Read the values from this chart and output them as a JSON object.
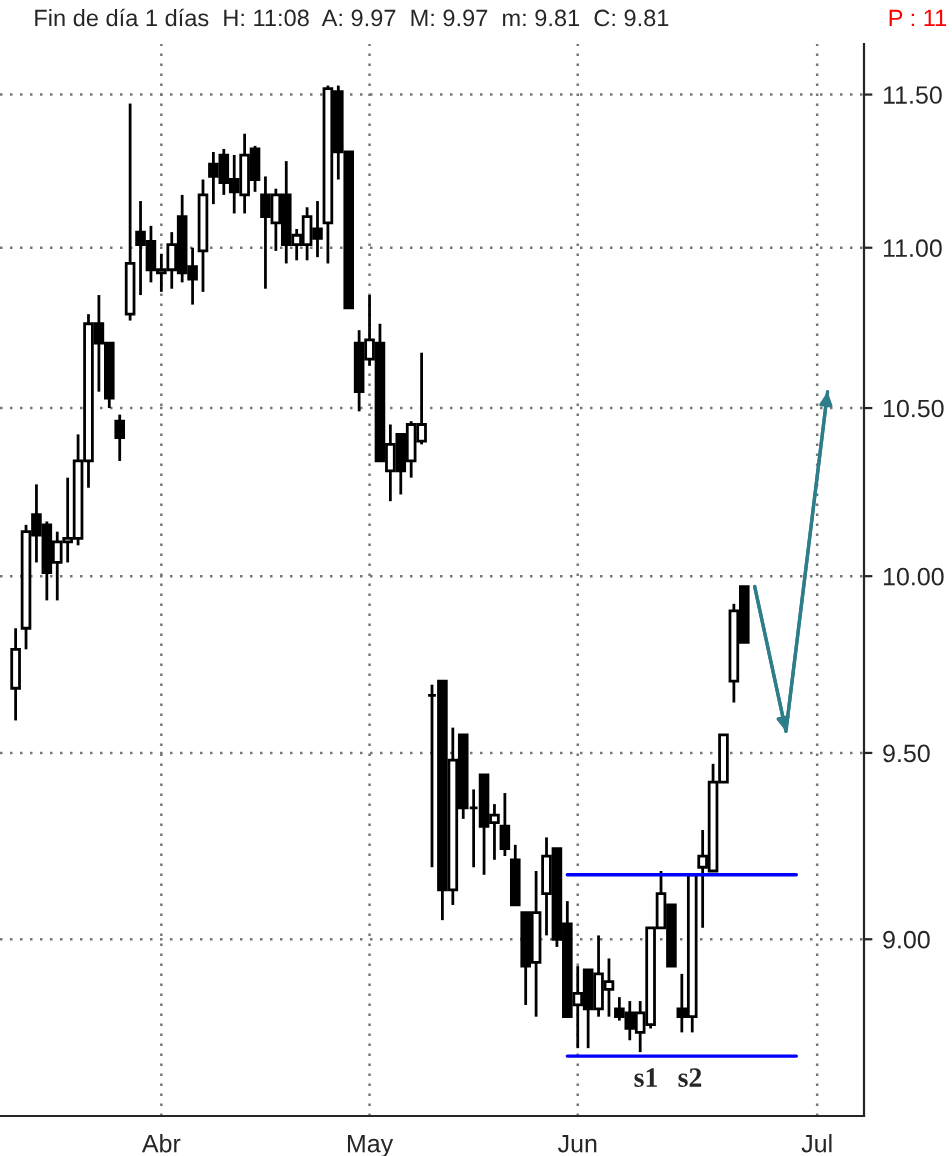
{
  "chart_data": {
    "type": "candlestick",
    "title": "Fin de día 1 días  H: 11:08  A: 9.97  M: 9.97  m: 9.81  C: 9.81",
    "annotations": [
      "P : 11",
      "s1",
      "s2"
    ],
    "categories": [
      null,
      null,
      null,
      null,
      null,
      null,
      null,
      null,
      null,
      null,
      null,
      null,
      null,
      null,
      "Abr",
      null,
      null,
      null,
      null,
      null,
      null,
      null,
      null,
      null,
      null,
      null,
      null,
      null,
      null,
      null,
      null,
      null,
      null,
      null,
      "May",
      null,
      null,
      null,
      null,
      null,
      null,
      null,
      null,
      null,
      null,
      null,
      null,
      null,
      null,
      null,
      null,
      null,
      null,
      null,
      "Jun",
      null,
      null,
      null,
      null,
      null,
      null,
      null,
      null,
      null,
      null,
      null,
      null,
      null,
      null,
      null,
      null,
      null,
      null,
      null,
      null,
      null,
      null,
      "Jul",
      null,
      null,
      null,
      null
    ],
    "ohlc": [
      [
        9.68,
        9.85,
        9.59,
        9.79
      ],
      [
        9.85,
        10.15,
        9.79,
        10.13
      ],
      [
        10.18,
        10.27,
        10.04,
        10.12
      ],
      [
        10.15,
        10.16,
        9.93,
        10.01
      ],
      [
        10.04,
        10.13,
        9.93,
        10.1
      ],
      [
        10.1,
        10.29,
        10.04,
        10.11
      ],
      [
        10.11,
        10.42,
        10.09,
        10.34
      ],
      [
        10.34,
        10.79,
        10.26,
        10.76
      ],
      [
        10.76,
        10.85,
        10.55,
        10.7
      ],
      [
        10.7,
        10.7,
        10.5,
        10.53
      ],
      [
        10.46,
        10.48,
        10.34,
        10.41
      ],
      [
        10.79,
        11.47,
        10.77,
        10.95
      ],
      [
        11.05,
        11.15,
        10.85,
        11.01
      ],
      [
        11.02,
        11.07,
        10.89,
        10.93
      ],
      [
        10.92,
        10.98,
        10.86,
        10.93
      ],
      [
        10.93,
        11.05,
        10.87,
        11.01
      ],
      [
        11.1,
        11.17,
        10.89,
        10.92
      ],
      [
        10.94,
        11.0,
        10.82,
        10.9
      ],
      [
        10.99,
        11.22,
        10.86,
        11.17
      ],
      [
        11.27,
        11.31,
        11.14,
        11.23
      ],
      [
        11.3,
        11.32,
        11.17,
        11.21
      ],
      [
        11.22,
        11.3,
        11.11,
        11.18
      ],
      [
        11.17,
        11.37,
        11.11,
        11.3
      ],
      [
        11.32,
        11.33,
        11.18,
        11.22
      ],
      [
        11.17,
        11.23,
        10.87,
        11.1
      ],
      [
        11.08,
        11.19,
        10.99,
        11.17
      ],
      [
        11.17,
        11.28,
        10.95,
        11.01
      ],
      [
        11.01,
        11.06,
        10.96,
        11.04
      ],
      [
        11.01,
        11.13,
        10.96,
        11.1
      ],
      [
        11.06,
        11.15,
        10.97,
        11.03
      ],
      [
        11.08,
        11.53,
        10.95,
        11.52
      ],
      [
        11.51,
        11.53,
        11.22,
        11.31
      ],
      [
        11.31,
        11.31,
        10.81,
        10.81
      ],
      [
        10.7,
        10.74,
        10.49,
        10.55
      ],
      [
        10.65,
        10.85,
        10.63,
        10.71
      ],
      [
        10.7,
        10.76,
        10.34,
        10.34
      ],
      [
        10.31,
        10.45,
        10.22,
        10.39
      ],
      [
        10.42,
        10.42,
        10.24,
        10.31
      ],
      [
        10.34,
        10.46,
        10.29,
        10.45
      ],
      [
        10.4,
        10.67,
        10.39,
        10.45
      ],
      [
        9.66,
        9.69,
        9.19,
        9.66
      ],
      [
        9.7,
        9.7,
        9.05,
        9.13
      ],
      [
        9.13,
        9.57,
        9.09,
        9.48
      ],
      [
        9.55,
        9.55,
        9.32,
        9.35
      ],
      [
        9.35,
        9.4,
        9.19,
        9.35
      ],
      [
        9.44,
        9.44,
        9.17,
        9.3
      ],
      [
        9.31,
        9.36,
        9.21,
        9.33
      ],
      [
        9.3,
        9.39,
        9.22,
        9.24
      ],
      [
        9.21,
        9.25,
        9.09,
        9.09
      ],
      [
        9.07,
        9.07,
        8.83,
        8.93
      ],
      [
        8.94,
        9.18,
        8.8,
        9.07
      ],
      [
        9.12,
        9.27,
        9.01,
        9.22
      ],
      [
        9.24,
        9.24,
        8.98,
        9.0
      ],
      [
        9.04,
        9.1,
        8.8,
        8.8
      ],
      [
        8.83,
        8.93,
        8.72,
        8.86
      ],
      [
        8.92,
        8.92,
        8.72,
        8.82
      ],
      [
        8.82,
        9.01,
        8.8,
        8.91
      ],
      [
        8.87,
        8.95,
        8.8,
        8.89
      ],
      [
        8.82,
        8.85,
        8.79,
        8.8
      ],
      [
        8.81,
        8.84,
        8.74,
        8.77
      ],
      [
        8.76,
        8.84,
        8.71,
        8.81
      ],
      [
        8.78,
        9.03,
        8.77,
        9.03
      ],
      [
        9.03,
        9.18,
        9.03,
        9.12
      ],
      [
        9.09,
        9.09,
        8.93,
        8.93
      ],
      [
        8.82,
        8.91,
        8.76,
        8.8
      ],
      [
        8.8,
        9.17,
        8.76,
        9.17
      ],
      [
        9.19,
        9.29,
        9.03,
        9.22
      ],
      [
        9.18,
        9.47,
        9.18,
        9.42
      ],
      [
        9.42,
        9.55,
        9.42,
        9.55
      ],
      [
        9.7,
        9.92,
        9.64,
        9.9
      ],
      [
        9.97,
        9.97,
        9.81,
        9.81
      ],
      null,
      null,
      null,
      null,
      null,
      null,
      null,
      null,
      null,
      null,
      null
    ],
    "series": [
      {
        "type": "line",
        "color": "#0000ff",
        "values": [
          null,
          null,
          null,
          null,
          null,
          null,
          null,
          null,
          null,
          null,
          null,
          null,
          null,
          null,
          null,
          null,
          null,
          null,
          null,
          null,
          null,
          null,
          null,
          null,
          null,
          null,
          null,
          null,
          null,
          null,
          null,
          null,
          null,
          null,
          null,
          null,
          null,
          null,
          null,
          null,
          null,
          null,
          null,
          null,
          null,
          null,
          null,
          null,
          null,
          null,
          null,
          null,
          null,
          9.17,
          null,
          null,
          null,
          null,
          null,
          null,
          null,
          null,
          null,
          null,
          null,
          null,
          null,
          null,
          null,
          null,
          null,
          null,
          null,
          null,
          null,
          9.17,
          null,
          null,
          null,
          null,
          null,
          null
        ]
      },
      {
        "type": "line",
        "color": "#0000ff",
        "values": [
          null,
          null,
          null,
          null,
          null,
          null,
          null,
          null,
          null,
          null,
          null,
          null,
          null,
          null,
          null,
          null,
          null,
          null,
          null,
          null,
          null,
          null,
          null,
          null,
          null,
          null,
          null,
          null,
          null,
          null,
          null,
          null,
          null,
          null,
          null,
          null,
          null,
          null,
          null,
          null,
          null,
          null,
          null,
          null,
          null,
          null,
          null,
          null,
          null,
          null,
          null,
          null,
          null,
          8.7,
          null,
          null,
          null,
          null,
          null,
          null,
          null,
          null,
          null,
          null,
          null,
          null,
          null,
          null,
          null,
          null,
          null,
          null,
          null,
          null,
          null,
          8.7,
          null,
          null,
          null,
          null,
          null,
          null
        ]
      },
      {
        "type": "line",
        "color": "#2e7d8a",
        "values": [
          null,
          null,
          null,
          null,
          null,
          null,
          null,
          null,
          null,
          null,
          null,
          null,
          null,
          null,
          null,
          null,
          null,
          null,
          null,
          null,
          null,
          null,
          null,
          null,
          null,
          null,
          null,
          null,
          null,
          null,
          null,
          null,
          null,
          null,
          null,
          null,
          null,
          null,
          null,
          null,
          null,
          null,
          null,
          null,
          null,
          null,
          null,
          null,
          null,
          null,
          null,
          null,
          null,
          null,
          null,
          null,
          null,
          null,
          null,
          null,
          null,
          null,
          null,
          null,
          null,
          null,
          null,
          null,
          null,
          null,
          null,
          9.97,
          null,
          null,
          9.56,
          null,
          null,
          null,
          10.55,
          null,
          null,
          null
        ]
      }
    ],
    "log": true,
    "ylim": [
      8.55,
      11.67
    ],
    "yticks": [
      {
        "value": 9.0,
        "label": "9.00"
      },
      {
        "value": 9.5,
        "label": "9.50"
      },
      {
        "value": 10.0,
        "label": "10.00"
      },
      {
        "value": 10.5,
        "label": "10.50"
      },
      {
        "value": 11.0,
        "label": "11.00"
      },
      {
        "value": 11.5,
        "label": "11.50"
      }
    ],
    "grid": true
  }
}
